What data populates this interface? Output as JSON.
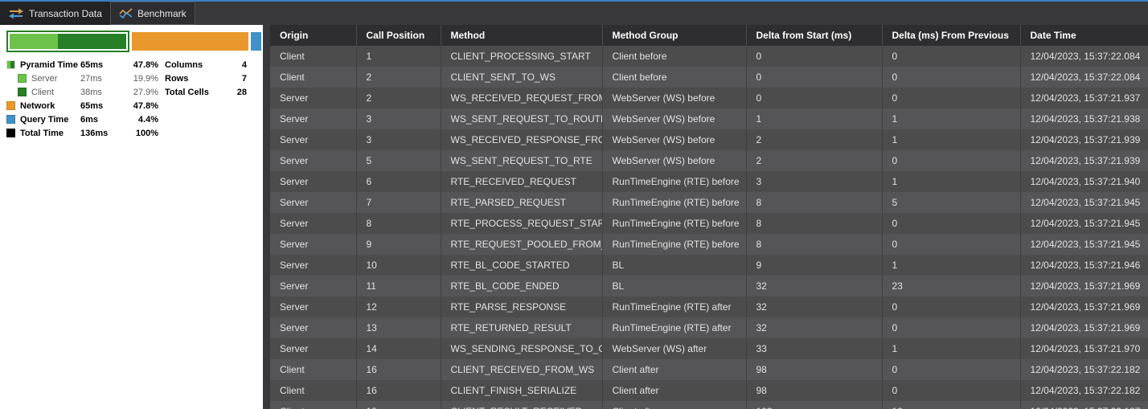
{
  "window": {
    "accent_color": "#3a80c0"
  },
  "tabs": [
    {
      "label": "Transaction Data",
      "icon": "swap-arrows-icon",
      "active": false
    },
    {
      "label": "Benchmark",
      "icon": "line-chart-icon",
      "active": true
    }
  ],
  "colors": {
    "light_green": "#6cc24a",
    "dark_green": "#267f26",
    "orange": "#e9992b",
    "blue": "#4191c9",
    "black": "#000000"
  },
  "benchmark_panel": {
    "bar": {
      "pyramid_ms": 65,
      "server_ms": 27,
      "client_ms": 38,
      "network_ms": 65,
      "query_ms": 6,
      "total_ms": 136
    },
    "legend": [
      {
        "label": "Pyramid Time",
        "value": "65ms",
        "pct": "47.8%",
        "swatch": "split",
        "style": "main",
        "indent": false
      },
      {
        "label": "Server",
        "value": "27ms",
        "pct": "19.9%",
        "swatch": "light_green",
        "style": "sub",
        "indent": true
      },
      {
        "label": "Client",
        "value": "38ms",
        "pct": "27.9%",
        "swatch": "dark_green",
        "style": "sub",
        "indent": true
      },
      {
        "label": "Network",
        "value": "65ms",
        "pct": "47.8%",
        "swatch": "orange",
        "style": "main",
        "indent": false
      },
      {
        "label": "Query Time",
        "value": "6ms",
        "pct": "4.4%",
        "swatch": "blue",
        "style": "main",
        "indent": false
      },
      {
        "label": "Total Time",
        "value": "136ms",
        "pct": "100%",
        "swatch": "black",
        "style": "main",
        "indent": false
      }
    ],
    "stats": [
      {
        "label": "Columns",
        "value": "4"
      },
      {
        "label": "Rows",
        "value": "7"
      },
      {
        "label": "Total Cells",
        "value": "28"
      }
    ]
  },
  "table": {
    "columns": [
      "Origin",
      "Call Position",
      "Method",
      "Method Group",
      "Delta from Start (ms)",
      "Delta (ms) From Previous",
      "Date Time"
    ],
    "rows": [
      [
        "Client",
        "1",
        "CLIENT_PROCESSING_START",
        "Client before",
        "0",
        "0",
        "12/04/2023, 15:37:22.084"
      ],
      [
        "Client",
        "2",
        "CLIENT_SENT_TO_WS",
        "Client before",
        "0",
        "0",
        "12/04/2023, 15:37:22.084"
      ],
      [
        "Server",
        "2",
        "WS_RECEIVED_REQUEST_FROM_CLIENT",
        "WebServer (WS) before",
        "0",
        "0",
        "12/04/2023, 15:37:21.937"
      ],
      [
        "Server",
        "3",
        "WS_SENT_REQUEST_TO_ROUTER",
        "WebServer (WS) before",
        "1",
        "1",
        "12/04/2023, 15:37:21.938"
      ],
      [
        "Server",
        "3",
        "WS_RECEIVED_RESPONSE_FROM_ROUTER",
        "WebServer (WS) before",
        "2",
        "1",
        "12/04/2023, 15:37:21.939"
      ],
      [
        "Server",
        "5",
        "WS_SENT_REQUEST_TO_RTE",
        "WebServer (WS) before",
        "2",
        "0",
        "12/04/2023, 15:37:21.939"
      ],
      [
        "Server",
        "6",
        "RTE_RECEIVED_REQUEST",
        "RunTimeEngine (RTE) before",
        "3",
        "1",
        "12/04/2023, 15:37:21.940"
      ],
      [
        "Server",
        "7",
        "RTE_PARSED_REQUEST",
        "RunTimeEngine (RTE) before",
        "8",
        "5",
        "12/04/2023, 15:37:21.945"
      ],
      [
        "Server",
        "8",
        "RTE_PROCESS_REQUEST_STARTED",
        "RunTimeEngine (RTE) before",
        "8",
        "0",
        "12/04/2023, 15:37:21.945"
      ],
      [
        "Server",
        "9",
        "RTE_REQUEST_POOLED_FROM_QUEUE",
        "RunTimeEngine (RTE) before",
        "8",
        "0",
        "12/04/2023, 15:37:21.945"
      ],
      [
        "Server",
        "10",
        "RTE_BL_CODE_STARTED",
        "BL",
        "9",
        "1",
        "12/04/2023, 15:37:21.946"
      ],
      [
        "Server",
        "11",
        "RTE_BL_CODE_ENDED",
        "BL",
        "32",
        "23",
        "12/04/2023, 15:37:21.969"
      ],
      [
        "Server",
        "12",
        "RTE_PARSE_RESPONSE",
        "RunTimeEngine (RTE) after",
        "32",
        "0",
        "12/04/2023, 15:37:21.969"
      ],
      [
        "Server",
        "13",
        "RTE_RETURNED_RESULT",
        "RunTimeEngine (RTE) after",
        "32",
        "0",
        "12/04/2023, 15:37:21.969"
      ],
      [
        "Server",
        "14",
        "WS_SENDING_RESPONSE_TO_CLIENT",
        "WebServer (WS) after",
        "33",
        "1",
        "12/04/2023, 15:37:21.970"
      ],
      [
        "Client",
        "16",
        "CLIENT_RECEIVED_FROM_WS",
        "Client after",
        "98",
        "0",
        "12/04/2023, 15:37:22.182"
      ],
      [
        "Client",
        "16",
        "CLIENT_FINISH_SERIALIZE",
        "Client after",
        "98",
        "0",
        "12/04/2023, 15:37:22.182"
      ]
    ],
    "partial_row": [
      "Client",
      "18",
      "CLIENT_RESULT_RECEIVED",
      "Client after",
      "103",
      "10",
      "12/04/2023, 15:37:22.187"
    ]
  }
}
